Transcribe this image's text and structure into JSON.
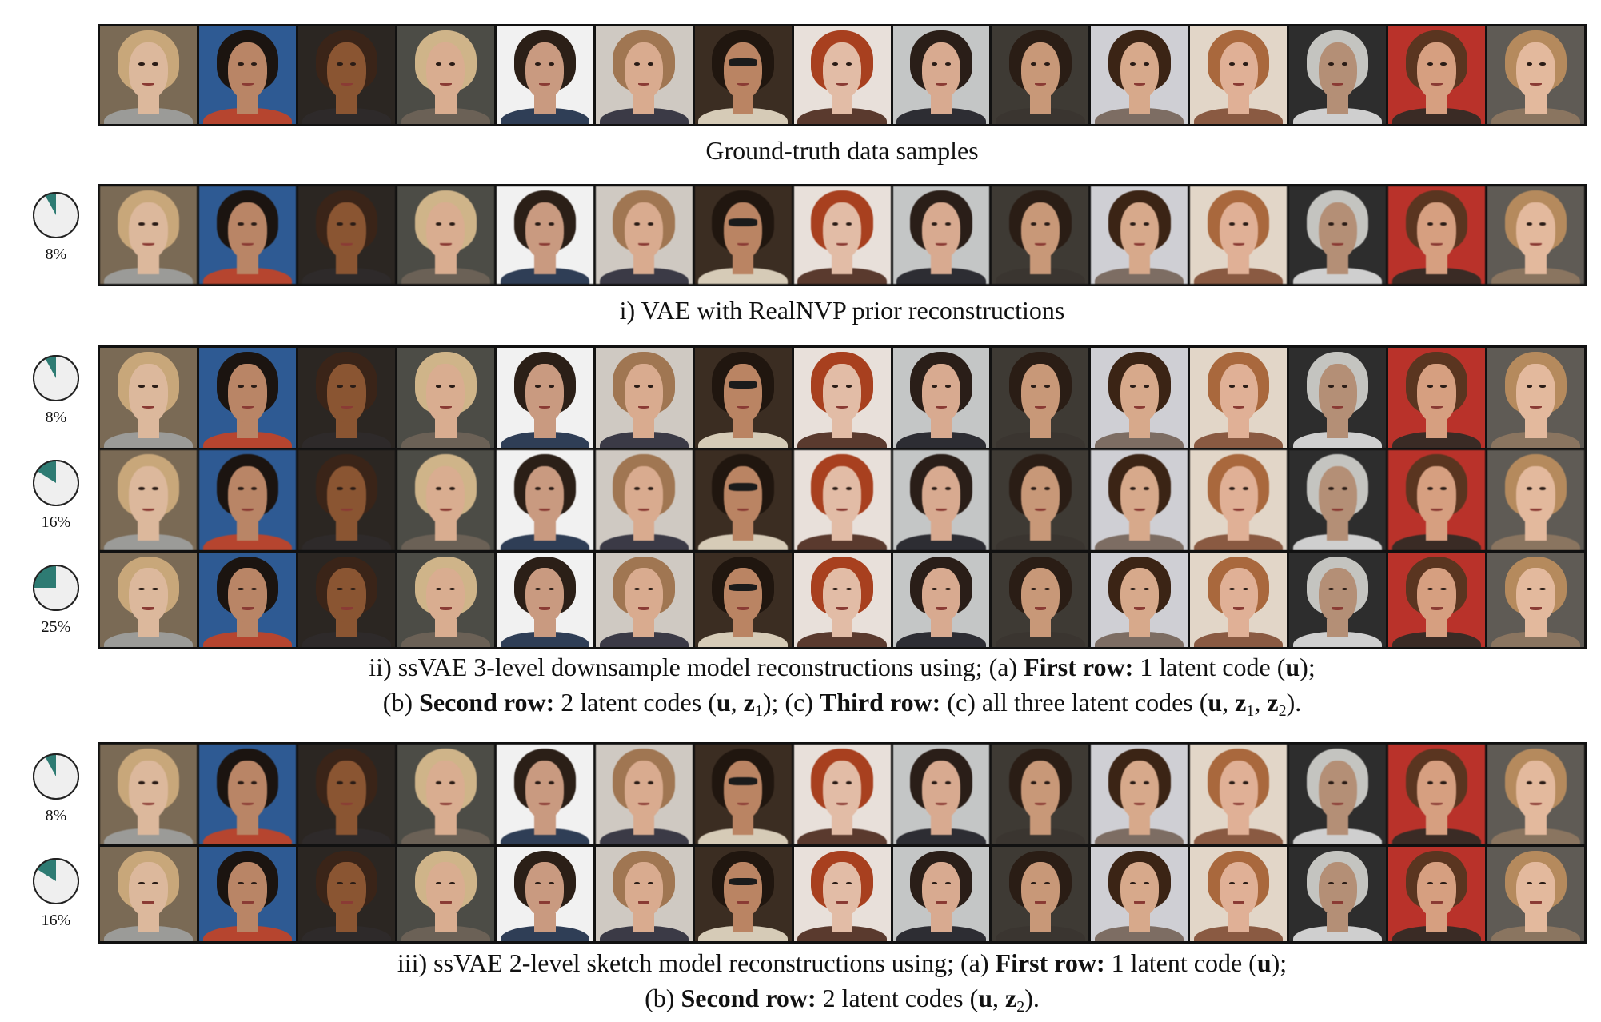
{
  "figure": {
    "colors": {
      "pie_fill": "#2e7b73",
      "pie_bg": "#efefef",
      "pie_stroke": "#222222",
      "frame": "#111111"
    },
    "face_palette": [
      {
        "bg": "#7a6a55",
        "hair": "#c8a77a",
        "skin": "#dcb89c",
        "cloth": "#9b9b98"
      },
      {
        "bg": "#2e5a93",
        "hair": "#1b1410",
        "skin": "#b98566",
        "cloth": "#b6452f"
      },
      {
        "bg": "#2b2622",
        "hair": "#3a2418",
        "skin": "#8a5532",
        "cloth": "#2e2a2a"
      },
      {
        "bg": "#4c4c46",
        "hair": "#cfb489",
        "skin": "#d9ad90",
        "cloth": "#6b6156"
      },
      {
        "bg": "#f1f1f1",
        "hair": "#2b1f17",
        "skin": "#c99a80",
        "cloth": "#2f3e56"
      },
      {
        "bg": "#cfc9c2",
        "hair": "#a07652",
        "skin": "#d9ab8f",
        "cloth": "#3b3a46"
      },
      {
        "bg": "#3b2d22",
        "hair": "#20160f",
        "skin": "#ba8463",
        "cloth": "#d6cbb7"
      },
      {
        "bg": "#e8e0da",
        "hair": "#a8401f",
        "skin": "#e2bca6",
        "cloth": "#5a3a2e"
      },
      {
        "bg": "#c4c6c6",
        "hair": "#2a1e18",
        "skin": "#d8aa90",
        "cloth": "#2d2d33"
      },
      {
        "bg": "#3e3a34",
        "hair": "#2a1d15",
        "skin": "#c89878",
        "cloth": "#3a3530"
      },
      {
        "bg": "#cfcfd4",
        "hair": "#3b2415",
        "skin": "#d7a98b",
        "cloth": "#7d6d63"
      },
      {
        "bg": "#e2d6c8",
        "hair": "#a9683d",
        "skin": "#e0b096",
        "cloth": "#8a5a42"
      },
      {
        "bg": "#2d2d2d",
        "hair": "#c4c4c0",
        "skin": "#b48f76",
        "cloth": "#cfcfcf"
      },
      {
        "bg": "#b9322a",
        "hair": "#5a3520",
        "skin": "#d69f80",
        "cloth": "#3a2b25"
      },
      {
        "bg": "#5f5b55",
        "hair": "#b58a5d",
        "skin": "#e3b99d",
        "cloth": "#8a7560"
      }
    ],
    "glasses_column": 6,
    "sections": [
      {
        "caption_parts": [
          {
            "t": "Ground-truth data samples",
            "b": false
          }
        ],
        "caption_line2_parts": []
      },
      {
        "caption_parts": [
          {
            "t": "i) VAE with RealNVP prior reconstructions",
            "b": false
          }
        ],
        "caption_line2_parts": []
      },
      {
        "caption_parts": [
          {
            "t": "ii) ssVAE 3-level downsample model reconstructions using; (a) ",
            "b": false
          },
          {
            "t": "First row:",
            "b": true
          },
          {
            "t": " 1 latent code (",
            "b": false
          },
          {
            "t": "u",
            "b": true
          },
          {
            "t": ");",
            "b": false
          }
        ],
        "caption_line2_parts": [
          {
            "t": "(b) ",
            "b": false
          },
          {
            "t": "Second row:",
            "b": true
          },
          {
            "t": " 2 latent codes (",
            "b": false
          },
          {
            "t": "u",
            "b": true
          },
          {
            "t": ", ",
            "b": false
          },
          {
            "t": "z",
            "b": true
          },
          {
            "t": "1",
            "sub": true
          },
          {
            "t": "); (c) ",
            "b": false
          },
          {
            "t": "Third row:",
            "b": true
          },
          {
            "t": " (c) all three latent codes (",
            "b": false
          },
          {
            "t": "u",
            "b": true
          },
          {
            "t": ", ",
            "b": false
          },
          {
            "t": "z",
            "b": true
          },
          {
            "t": "1",
            "sub": true
          },
          {
            "t": ", ",
            "b": false
          },
          {
            "t": "z",
            "b": true
          },
          {
            "t": "2",
            "sub": true
          },
          {
            "t": ").",
            "b": false
          }
        ]
      },
      {
        "caption_parts": [
          {
            "t": "iii) ssVAE 2-level sketch model reconstructions using; (a) ",
            "b": false
          },
          {
            "t": "First row:",
            "b": true
          },
          {
            "t": " 1 latent code (",
            "b": false
          },
          {
            "t": "u",
            "b": true
          },
          {
            "t": ");",
            "b": false
          }
        ],
        "caption_line2_parts": [
          {
            "t": "(b) ",
            "b": false
          },
          {
            "t": "Second row:",
            "b": true
          },
          {
            "t": " 2 latent codes (",
            "b": false
          },
          {
            "t": "u",
            "b": true
          },
          {
            "t": ", ",
            "b": false
          },
          {
            "t": "z",
            "b": true
          },
          {
            "t": "2",
            "sub": true
          },
          {
            "t": ").",
            "b": false
          }
        ]
      }
    ],
    "pies": [
      {
        "percent": 8,
        "label": "8%"
      },
      {
        "percent": 8,
        "label": "8%"
      },
      {
        "percent": 16,
        "label": "16%"
      },
      {
        "percent": 25,
        "label": "25%"
      },
      {
        "percent": 8,
        "label": "8%"
      },
      {
        "percent": 16,
        "label": "16%"
      }
    ]
  }
}
